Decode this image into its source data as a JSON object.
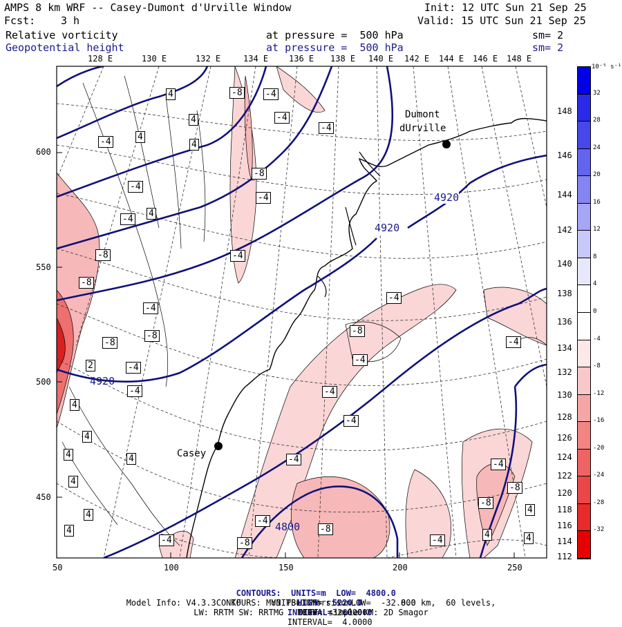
{
  "header": {
    "title": "AMPS 8 km WRF -- Casey-Dumont d'Urville Window",
    "init": "Init: 12 UTC Sun 21 Sep 25",
    "fcst_label": "Fcst:",
    "fcst_value": "3 h",
    "valid": "Valid: 15 UTC Sun 21 Sep 25",
    "field1": "Relative vorticity",
    "field1_level": "at pressure =  500 hPa",
    "field1_sm": "sm= 2",
    "field2": "Geopotential height",
    "field2_level": "at pressure =  500 hPa",
    "field2_sm": "sm= 2"
  },
  "longitudes": [
    "128 E",
    "130 E",
    "132 E",
    "134 E",
    "136 E",
    "138 E",
    "140 E",
    "142 E",
    "144 E",
    "146 E",
    "148 E"
  ],
  "latitudes": [
    "148 E",
    "146 E",
    "144 E",
    "142 E",
    "140 E",
    "138 E",
    "136 E",
    "134 E",
    "132 E",
    "130 E",
    "128 E",
    "126 E",
    "124 E",
    "122 E",
    "120 E",
    "118 E",
    "116 E",
    "114 E",
    "112 E"
  ],
  "x_ticks": [
    "50",
    "100",
    "150",
    "200",
    "250"
  ],
  "y_ticks": [
    "600",
    "550",
    "500",
    "450"
  ],
  "stations": [
    {
      "name": "Dumont",
      "name2": "dUrville"
    },
    {
      "name": "Casey"
    }
  ],
  "height_labels": [
    "4920",
    "4920",
    "4920",
    "4800"
  ],
  "vort_labels": [
    "-4",
    "-8",
    "4",
    "2"
  ],
  "colorbar": {
    "unit": "10⁻⁵ s⁻¹",
    "labels": [
      "32",
      "28",
      "24",
      "20",
      "16",
      "12",
      "8",
      "4",
      "0",
      "-4",
      "-8",
      "-12",
      "-16",
      "-20",
      "-24",
      "-28",
      "-32"
    ],
    "colors": [
      "#0000e6",
      "#2a2ae8",
      "#4848ea",
      "#6464ee",
      "#8484f2",
      "#a6a6f6",
      "#c8c8fa",
      "#e8e8fd",
      "#ffffff",
      "#ffffff",
      "#fde8e8",
      "#f9c8c8",
      "#f5a6a6",
      "#f28484",
      "#ee6464",
      "#ea4848",
      "#e82a2a",
      "#e60000"
    ]
  },
  "footer": {
    "line1_a": "CONTOURS:  UNITS=m  LOW=  4800.0",
    "line1_b": "HIGH=  5220.0",
    "line1_c": "INTERVAL=  60.000",
    "line2_a": "CONTOURS:  UNITS=10⁻⁵ s⁻¹  LOW=  -32.000",
    "line2_b": "HIGH=  32.000",
    "line2_c": "INTERVAL=  4.0000",
    "line3": "Model Info: V4.3.3   KF     MYJ PBL  Morrison          8.0 km,  60 levels,",
    "line4": "LW: RRTM SW: RRTMG   DIFF: simple KM: 2D Smagor"
  }
}
